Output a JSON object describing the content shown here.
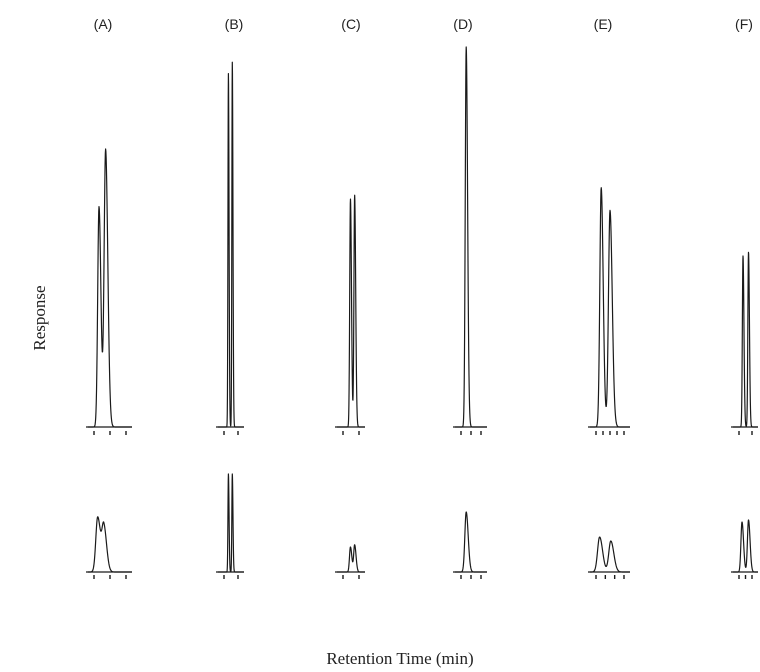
{
  "chart_data": {
    "type": "line",
    "title": "",
    "xlabel": "Retention Time (min)",
    "ylabel": "Response",
    "panels": [
      {
        "label": "(A)",
        "upper": {
          "ticks": 3,
          "peaks": [
            {
              "t": 0.25,
              "h": 0.58,
              "w": 0.035
            },
            {
              "t": 0.4,
              "h": 0.73,
              "w": 0.04
            }
          ]
        },
        "lower": {
          "ticks": 3,
          "peaks": [
            {
              "t": 0.22,
              "h": 0.55,
              "w": 0.05
            },
            {
              "t": 0.36,
              "h": 0.45,
              "w": 0.05
            }
          ]
        }
      },
      {
        "label": "(B)",
        "upper": {
          "ticks": 2,
          "peaks": [
            {
              "t": 0.4,
              "h": 0.93,
              "w": 0.02
            },
            {
              "t": 0.55,
              "h": 0.96,
              "w": 0.02
            }
          ]
        },
        "lower": {
          "ticks": 2,
          "peaks": [
            {
              "t": 0.4,
              "h": 0.98,
              "w": 0.02
            },
            {
              "t": 0.55,
              "h": 0.98,
              "w": 0.02
            }
          ]
        }
      },
      {
        "label": "(C)",
        "upper": {
          "ticks": 2,
          "peaks": [
            {
              "t": 0.48,
              "h": 0.6,
              "w": 0.03
            },
            {
              "t": 0.63,
              "h": 0.61,
              "w": 0.03
            }
          ]
        },
        "lower": {
          "ticks": 2,
          "peaks": [
            {
              "t": 0.48,
              "h": 0.25,
              "w": 0.04
            },
            {
              "t": 0.63,
              "h": 0.27,
              "w": 0.04
            }
          ]
        }
      },
      {
        "label": "(D)",
        "upper": {
          "ticks": 3,
          "peaks": [
            {
              "t": 0.35,
              "h": 1.0,
              "w": 0.035
            }
          ]
        },
        "lower": {
          "ticks": 3,
          "peaks": [
            {
              "t": 0.35,
              "h": 0.6,
              "w": 0.05
            }
          ]
        }
      },
      {
        "label": "(E)",
        "upper": {
          "ticks": 5,
          "peaks": [
            {
              "t": 0.28,
              "h": 0.63,
              "w": 0.04
            },
            {
              "t": 0.5,
              "h": 0.57,
              "w": 0.045
            }
          ]
        },
        "lower": {
          "ticks": 4,
          "peaks": [
            {
              "t": 0.24,
              "h": 0.35,
              "w": 0.06
            },
            {
              "t": 0.52,
              "h": 0.31,
              "w": 0.06
            }
          ]
        }
      },
      {
        "label": "(F)",
        "upper": {
          "ticks": 2,
          "peaks": [
            {
              "t": 0.4,
              "h": 0.45,
              "w": 0.03
            },
            {
              "t": 0.62,
              "h": 0.46,
              "w": 0.03
            }
          ]
        },
        "lower": {
          "ticks": 3,
          "peaks": [
            {
              "t": 0.36,
              "h": 0.5,
              "w": 0.05
            },
            {
              "t": 0.62,
              "h": 0.52,
              "w": 0.05
            }
          ]
        }
      }
    ]
  }
}
